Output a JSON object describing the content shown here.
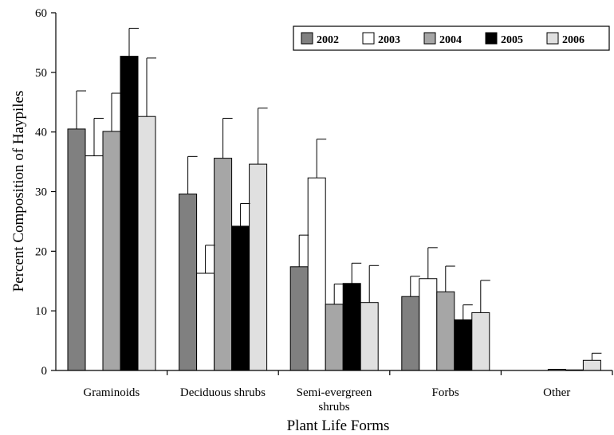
{
  "chart_data": {
    "type": "bar",
    "title": "",
    "xlabel": "Plant Life Forms",
    "ylabel": "Percent Composition of Haypiles",
    "ylim": [
      0,
      60
    ],
    "yticks": [
      0,
      10,
      20,
      30,
      40,
      50,
      60
    ],
    "categories": [
      [
        "Graminoids"
      ],
      [
        "Deciduous shrubs"
      ],
      [
        "Semi-evergreen",
        "shrubs"
      ],
      [
        "Forbs"
      ],
      [
        "Other"
      ]
    ],
    "series": [
      {
        "name": "2002",
        "color": "#808080",
        "values": [
          40.5,
          29.6,
          17.4,
          12.4,
          0.0
        ],
        "errors": [
          6.4,
          6.3,
          5.3,
          3.4,
          0.0
        ]
      },
      {
        "name": "2003",
        "color": "#ffffff",
        "values": [
          36.0,
          16.3,
          32.3,
          15.4,
          0.0
        ],
        "errors": [
          6.3,
          4.7,
          6.5,
          5.2,
          0.0
        ]
      },
      {
        "name": "2004",
        "color": "#a6a6a6",
        "values": [
          40.1,
          35.6,
          11.1,
          13.2,
          0.2
        ],
        "errors": [
          6.4,
          6.7,
          3.4,
          4.3,
          0.0
        ]
      },
      {
        "name": "2005",
        "color": "#000000",
        "values": [
          52.7,
          24.2,
          14.6,
          8.5,
          0.1
        ],
        "errors": [
          4.7,
          3.8,
          3.4,
          2.5,
          0.0
        ]
      },
      {
        "name": "2006",
        "color": "#e0e0e0",
        "values": [
          42.6,
          34.6,
          11.4,
          9.7,
          1.7
        ],
        "errors": [
          9.8,
          9.4,
          6.2,
          5.4,
          1.2
        ]
      }
    ],
    "grid": false,
    "legend_position": "top-right"
  }
}
